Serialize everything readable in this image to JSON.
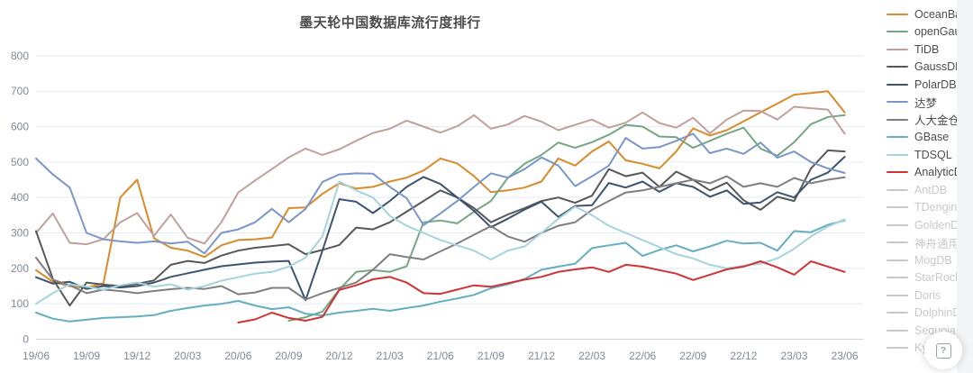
{
  "page": {
    "title": "墨天轮中国数据库流行度排行"
  },
  "help_button": {
    "icon": "question-in-square",
    "glyph": "?"
  },
  "chart_data": {
    "type": "line",
    "title": "墨天轮中国数据库流行度排行",
    "xlabel": "",
    "ylabel": "",
    "ylim": [
      0,
      800
    ],
    "y_ticks": [
      0,
      100,
      200,
      300,
      400,
      500,
      600,
      700,
      800
    ],
    "grid": true,
    "legend_position": "right",
    "x_labels": [
      "19/06",
      "19/09",
      "19/12",
      "20/03",
      "20/06",
      "20/09",
      "20/12",
      "21/03",
      "21/06",
      "21/09",
      "21/12",
      "22/03",
      "22/06",
      "22/09",
      "22/12",
      "23/03",
      "23/06"
    ],
    "points_per_label": 3,
    "n_points": 49,
    "axis_label_color": "#7f8b99",
    "grid_color": "#e4ecf4",
    "axis_line_color": "#cfd6dd",
    "disabled_color": "#c9c9c9",
    "series": [
      {
        "name": "OceanBase",
        "color": "#d98a2b",
        "enabled": true,
        "values": [
          195,
          162,
          150,
          145,
          158,
          400,
          450,
          285,
          258,
          250,
          232,
          265,
          280,
          282,
          287,
          370,
          372,
          410,
          440,
          425,
          430,
          445,
          456,
          476,
          510,
          496,
          460,
          415,
          420,
          428,
          445,
          510,
          490,
          530,
          558,
          505,
          495,
          482,
          530,
          595,
          575,
          590,
          615,
          640,
          665,
          690,
          695,
          700,
          640
        ]
      },
      {
        "name": "openGauss",
        "color": "#75a784",
        "enabled": true,
        "values": [
          null,
          null,
          null,
          null,
          null,
          null,
          null,
          null,
          null,
          null,
          null,
          null,
          null,
          null,
          null,
          52,
          62,
          78,
          140,
          190,
          195,
          190,
          206,
          330,
          335,
          327,
          360,
          390,
          455,
          495,
          520,
          555,
          540,
          556,
          577,
          605,
          600,
          572,
          570,
          540,
          560,
          580,
          597,
          538,
          518,
          556,
          607,
          627,
          632
        ]
      },
      {
        "name": "TiDB",
        "color": "#c1a09b",
        "enabled": true,
        "values": [
          300,
          355,
          272,
          268,
          282,
          330,
          356,
          292,
          352,
          286,
          270,
          330,
          414,
          448,
          480,
          513,
          538,
          520,
          536,
          560,
          582,
          594,
          617,
          600,
          583,
          601,
          632,
          594,
          606,
          630,
          614,
          590,
          605,
          620,
          597,
          611,
          640,
          610,
          597,
          625,
          581,
          620,
          645,
          644,
          620,
          656,
          652,
          648,
          580
        ]
      },
      {
        "name": "GaussDB",
        "color": "#585858",
        "enabled": true,
        "values": [
          305,
          170,
          95,
          160,
          154,
          150,
          156,
          166,
          210,
          221,
          215,
          236,
          250,
          258,
          263,
          268,
          240,
          252,
          266,
          315,
          310,
          330,
          360,
          390,
          420,
          400,
          370,
          330,
          352,
          370,
          390,
          400,
          385,
          405,
          480,
          460,
          470,
          430,
          473,
          450,
          420,
          442,
          392,
          365,
          402,
          390,
          482,
          533,
          530
        ]
      },
      {
        "name": "PolarDB",
        "color": "#3e5370",
        "enabled": true,
        "values": [
          175,
          157,
          162,
          142,
          150,
          146,
          150,
          160,
          176,
          186,
          196,
          206,
          211,
          216,
          219,
          221,
          110,
          250,
          395,
          388,
          356,
          390,
          430,
          458,
          438,
          400,
          362,
          316,
          340,
          366,
          388,
          345,
          376,
          378,
          441,
          428,
          445,
          416,
          440,
          430,
          402,
          420,
          382,
          386,
          415,
          400,
          450,
          470,
          515
        ]
      },
      {
        "name": "达梦",
        "color": "#7b97c9",
        "enabled": true,
        "values": [
          510,
          465,
          428,
          300,
          282,
          276,
          272,
          276,
          270,
          275,
          242,
          300,
          310,
          330,
          368,
          330,
          368,
          444,
          465,
          468,
          467,
          430,
          398,
          322,
          355,
          390,
          430,
          468,
          456,
          480,
          513,
          490,
          432,
          460,
          490,
          568,
          538,
          542,
          560,
          580,
          525,
          538,
          523,
          555,
          512,
          530,
          500,
          482,
          469
        ]
      },
      {
        "name": "人大金仓",
        "color": "#7f7f7f",
        "enabled": true,
        "values": [
          230,
          168,
          152,
          130,
          140,
          136,
          130,
          136,
          141,
          145,
          142,
          150,
          127,
          132,
          145,
          145,
          112,
          130,
          145,
          160,
          196,
          240,
          232,
          225,
          248,
          270,
          295,
          319,
          290,
          275,
          300,
          320,
          330,
          365,
          390,
          414,
          420,
          430,
          440,
          450,
          440,
          460,
          430,
          440,
          430,
          455,
          440,
          450,
          457
        ]
      },
      {
        "name": "GBase",
        "color": "#64aebf",
        "enabled": true,
        "values": [
          75,
          58,
          50,
          55,
          60,
          62,
          64,
          68,
          80,
          88,
          95,
          100,
          108,
          95,
          85,
          90,
          72,
          67,
          75,
          80,
          86,
          80,
          88,
          95,
          106,
          115,
          125,
          144,
          155,
          170,
          196,
          205,
          213,
          257,
          265,
          272,
          235,
          252,
          265,
          248,
          262,
          278,
          270,
          272,
          250,
          305,
          302,
          323,
          335
        ]
      },
      {
        "name": "TDSQL",
        "color": "#a5d4dc",
        "enabled": true,
        "values": [
          100,
          130,
          155,
          148,
          140,
          152,
          160,
          148,
          155,
          140,
          150,
          165,
          175,
          185,
          190,
          205,
          230,
          290,
          445,
          420,
          400,
          348,
          320,
          300,
          280,
          265,
          250,
          225,
          250,
          262,
          300,
          340,
          374,
          350,
          320,
          300,
          280,
          260,
          240,
          228,
          210,
          200,
          208,
          213,
          228,
          255,
          290,
          318,
          338
        ]
      },
      {
        "name": "AnalyticDB",
        "color": "#d03333",
        "enabled": true,
        "values": [
          null,
          null,
          null,
          null,
          null,
          null,
          null,
          null,
          null,
          null,
          null,
          null,
          47,
          56,
          75,
          60,
          52,
          63,
          139,
          152,
          169,
          176,
          160,
          130,
          128,
          140,
          152,
          148,
          158,
          168,
          176,
          190,
          197,
          203,
          190,
          210,
          205,
          195,
          185,
          167,
          182,
          197,
          205,
          220,
          203,
          182,
          220,
          205,
          190
        ]
      },
      {
        "name": "AntDB",
        "color": "#c9c9c9",
        "enabled": false,
        "values": []
      },
      {
        "name": "TDengine",
        "color": "#c9c9c9",
        "enabled": false,
        "values": []
      },
      {
        "name": "GoldenDB",
        "color": "#c9c9c9",
        "enabled": false,
        "values": []
      },
      {
        "name": "神舟通用",
        "color": "#c9c9c9",
        "enabled": false,
        "values": []
      },
      {
        "name": "MogDB",
        "color": "#c9c9c9",
        "enabled": false,
        "values": []
      },
      {
        "name": "StarRocks",
        "color": "#c9c9c9",
        "enabled": false,
        "values": []
      },
      {
        "name": "Doris",
        "color": "#c9c9c9",
        "enabled": false,
        "values": []
      },
      {
        "name": "DolphinDB",
        "color": "#c9c9c9",
        "enabled": false,
        "values": []
      },
      {
        "name": "SequoiaDB",
        "color": "#c9c9c9",
        "enabled": false,
        "values": []
      },
      {
        "name": "Kyligence",
        "color": "#c9c9c9",
        "enabled": false,
        "values": []
      }
    ]
  }
}
